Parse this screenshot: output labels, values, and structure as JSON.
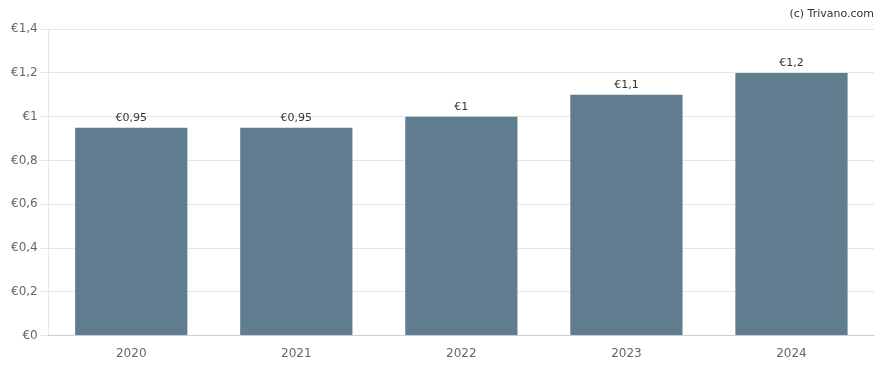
{
  "chart_data": {
    "type": "bar",
    "categories": [
      "2020",
      "2021",
      "2022",
      "2023",
      "2024"
    ],
    "values": [
      0.95,
      0.95,
      1.0,
      1.1,
      1.2
    ],
    "value_labels": [
      "€0,95",
      "€0,95",
      "€1",
      "€1,1",
      "€1,2"
    ],
    "data_labels": true,
    "color": "#5f7d8e",
    "ylim": [
      0,
      1.4
    ],
    "yticks": [
      {
        "value": 0,
        "label": "€0"
      },
      {
        "value": 0.2,
        "label": "€0,2"
      },
      {
        "value": 0.4,
        "label": "€0,4"
      },
      {
        "value": 0.6,
        "label": "€0,6"
      },
      {
        "value": 0.8,
        "label": "€0,8"
      },
      {
        "value": 1.0,
        "label": "€1"
      },
      {
        "value": 1.2,
        "label": "€1,2"
      },
      {
        "value": 1.4,
        "label": "€1,4"
      }
    ],
    "grid": true,
    "annotations": [
      "(c) Trivano.com"
    ]
  }
}
